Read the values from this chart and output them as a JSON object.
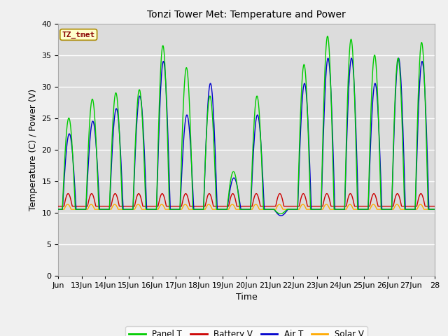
{
  "title": "Tonzi Tower Met: Temperature and Power",
  "xlabel": "Time",
  "ylabel": "Temperature (C) / Power (V)",
  "ylim": [
    0,
    40
  ],
  "yticks": [
    0,
    5,
    10,
    15,
    20,
    25,
    30,
    35,
    40
  ],
  "xtick_positions": [
    12,
    13,
    14,
    15,
    16,
    17,
    18,
    19,
    20,
    21,
    22,
    23,
    24,
    25,
    26,
    27,
    28
  ],
  "xtick_labels": [
    "Jun",
    "13Jun",
    "14Jun",
    "15Jun",
    "16Jun",
    "17Jun",
    "18Jun",
    "19Jun",
    "20Jun",
    "21Jun",
    "22Jun",
    "23Jun",
    "24Jun",
    "25Jun",
    "26Jun",
    "27Jun",
    "28"
  ],
  "legend_labels": [
    "Panel T",
    "Battery V",
    "Air T",
    "Solar V"
  ],
  "legend_colors": [
    "#00cc00",
    "#cc0000",
    "#0000cc",
    "#ffaa00"
  ],
  "annotation_text": "TZ_tmet",
  "annotation_color": "#880000",
  "annotation_bg": "#ffffcc",
  "annotation_edge": "#aa8800",
  "fig_bg": "#f0f0f0",
  "plot_bg": "#dcdcdc",
  "grid_color": "#ffffff",
  "title_fontsize": 10,
  "axis_fontsize": 8,
  "panel_peak_vals": [
    25.0,
    28.0,
    29.0,
    29.5,
    36.5,
    33.0,
    28.5,
    16.5,
    28.5,
    9.8,
    33.5,
    38.0,
    37.5,
    35.0,
    34.5,
    37.0
  ],
  "air_peak_vals": [
    22.5,
    24.5,
    26.5,
    28.5,
    34.0,
    25.5,
    30.5,
    15.5,
    25.5,
    9.5,
    30.5,
    34.5,
    34.5,
    30.5,
    34.5,
    34.0
  ],
  "panel_base": 10.5,
  "air_base": 10.5,
  "battery_base": 11.0,
  "battery_peak_add": 2.0,
  "solar_base": 10.5,
  "solar_peak_add": 0.8,
  "n_pts": 1600,
  "x_start": 12,
  "x_end": 28
}
